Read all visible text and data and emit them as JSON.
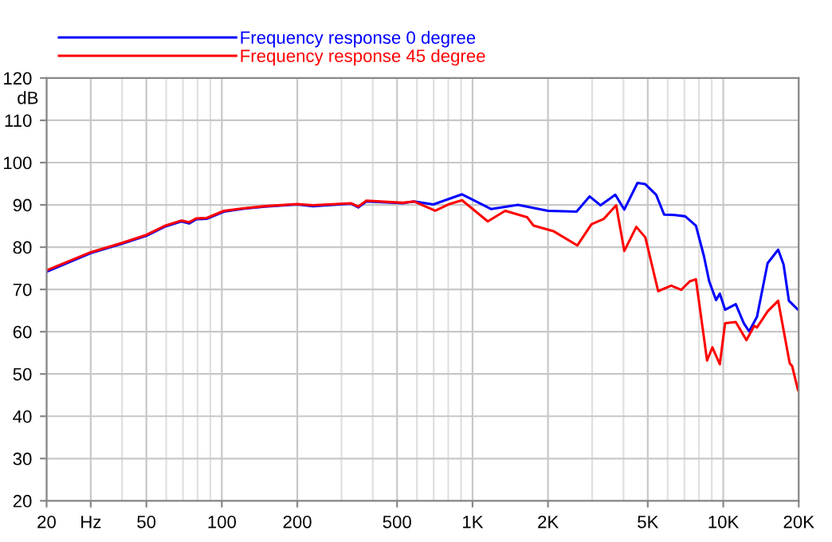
{
  "chart_data": {
    "type": "line",
    "ylabel": "dB",
    "legend": "top left",
    "grid": true,
    "log": "x",
    "marker": "none",
    "line_style": "solid",
    "xlim": [
      20,
      20000
    ],
    "ylim": [
      20,
      120
    ],
    "xticks": [
      20,
      {
        "value": 30,
        "label": "Hz"
      },
      50,
      100,
      200,
      500,
      {
        "value": 1000,
        "label": "1K"
      },
      {
        "value": 2000,
        "label": "2K"
      },
      {
        "value": 5000,
        "label": "5K"
      },
      {
        "value": 10000,
        "label": "10K"
      },
      {
        "value": 20000,
        "label": "20K"
      }
    ],
    "yticks": [
      20,
      30,
      40,
      50,
      60,
      70,
      80,
      90,
      100,
      110,
      120
    ],
    "series": [
      {
        "name": "Frequency response 0 degree",
        "color": "#0000ff",
        "x": [
          20,
          30,
          40,
          50,
          59,
          69,
          74,
          79,
          87,
          102,
          123,
          149,
          200,
          231,
          327,
          350,
          377,
          527,
          585,
          698,
          908,
          1188,
          1517,
          2000,
          2600,
          2930,
          3240,
          3710,
          4030,
          4550,
          4890,
          5400,
          5810,
          6400,
          7050,
          7780,
          8380,
          8790,
          9360,
          9690,
          10170,
          11220,
          12080,
          12680,
          13630,
          15030,
          16560,
          17400,
          18280,
          19870
        ],
        "values": [
          74.2,
          78.6,
          80.8,
          82.7,
          84.8,
          86.1,
          85.6,
          86.6,
          86.7,
          88.4,
          89.1,
          89.6,
          90.1,
          89.7,
          90.3,
          89.4,
          90.8,
          90.4,
          90.8,
          90.1,
          92.5,
          89.0,
          90.0,
          88.6,
          88.4,
          92.0,
          89.9,
          92.4,
          88.9,
          95.2,
          94.9,
          92.4,
          87.7,
          87.6,
          87.3,
          85.1,
          77.8,
          71.9,
          67.5,
          69.0,
          65.2,
          66.5,
          62.0,
          60.1,
          63.5,
          76.2,
          79.4,
          75.9,
          67.3,
          65.2
        ]
      },
      {
        "name": "Frequency response 45 degree",
        "color": "#ff0000",
        "x": [
          20,
          30,
          40,
          50,
          59,
          69,
          74,
          79,
          87,
          102,
          123,
          149,
          200,
          231,
          327,
          350,
          377,
          527,
          585,
          710,
          800,
          908,
          1150,
          1350,
          1650,
          1750,
          2100,
          2620,
          2980,
          3340,
          3740,
          4030,
          4500,
          4890,
          5500,
          6200,
          6800,
          7350,
          7780,
          8620,
          9050,
          9690,
          10170,
          11220,
          12370,
          13300,
          13630,
          15030,
          16560,
          18420,
          18820,
          19870
        ],
        "values": [
          74.5,
          78.8,
          81.0,
          82.9,
          85.0,
          86.3,
          85.9,
          86.8,
          86.9,
          88.6,
          89.2,
          89.7,
          90.2,
          89.9,
          90.4,
          89.6,
          91.0,
          90.5,
          90.8,
          88.6,
          90.1,
          91.1,
          86.1,
          88.6,
          87.1,
          85.1,
          83.8,
          80.4,
          85.4,
          86.7,
          89.9,
          79.1,
          84.8,
          82.3,
          69.6,
          70.9,
          69.9,
          71.9,
          72.4,
          53.2,
          56.3,
          52.3,
          62.0,
          62.3,
          58.0,
          61.4,
          61.0,
          64.8,
          67.3,
          52.5,
          51.9,
          46.2
        ]
      }
    ]
  }
}
